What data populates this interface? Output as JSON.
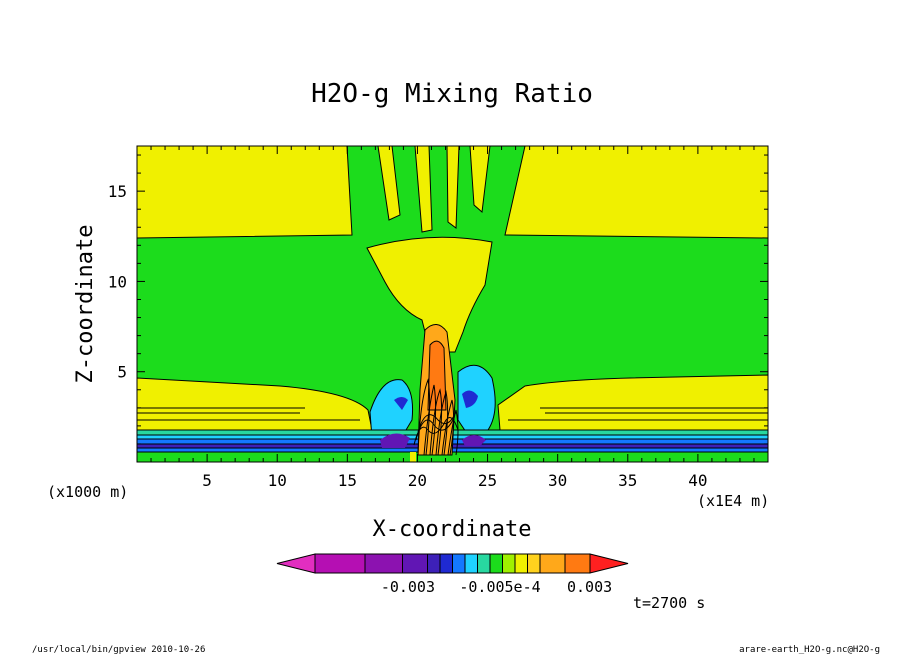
{
  "chart_data": {
    "type": "heatmap",
    "title": "H2O-g Mixing Ratio",
    "xlabel": "X-coordinate",
    "ylabel": "Z-coordinate",
    "x_unit": "(x1E4 m)",
    "y_unit": "(x1000 m)",
    "xlim": [
      0,
      45
    ],
    "ylim": [
      0,
      17.5
    ],
    "x_ticks": [
      5,
      10,
      15,
      20,
      25,
      30,
      35,
      40
    ],
    "y_ticks": [
      5,
      10,
      15
    ],
    "colorbar": {
      "colors": [
        "#e22ec0",
        "#b50fb3",
        "#8c12b0",
        "#6116b4",
        "#3d20b8",
        "#1f2ad2",
        "#1478ff",
        "#1fd2ff",
        "#28d8a0",
        "#1cdc1c",
        "#a0f000",
        "#f0f000",
        "#ffd21e",
        "#ffa81a",
        "#ff7a12",
        "#ff2020"
      ],
      "tick_labels": [
        "-0.003",
        "-0.005e-4",
        "0.003"
      ]
    },
    "contour_regions": [
      {
        "label": "background",
        "fill": "#1cdc1c",
        "z_range": [
          0,
          17.5
        ]
      },
      {
        "label": "upper-layer",
        "fill": "#f0f000",
        "z_range": [
          12.5,
          17.5
        ]
      },
      {
        "label": "lower-layer",
        "fill": "#f0f000",
        "z_range": [
          1.7,
          5.0
        ]
      },
      {
        "label": "surface-band-blue",
        "fill": "#1478ff",
        "z_range": [
          0.6,
          1.2
        ]
      },
      {
        "label": "column-core",
        "fill": "#ff7a12",
        "x_range": [
          20,
          23
        ],
        "z_range": [
          0.5,
          7.5
        ]
      }
    ]
  },
  "annotations": {
    "time": "t=2700 s",
    "footer_left": "/usr/local/bin/gpview  2010-10-26",
    "footer_right": "arare-earth_H2O-g.nc@H2O-g"
  }
}
